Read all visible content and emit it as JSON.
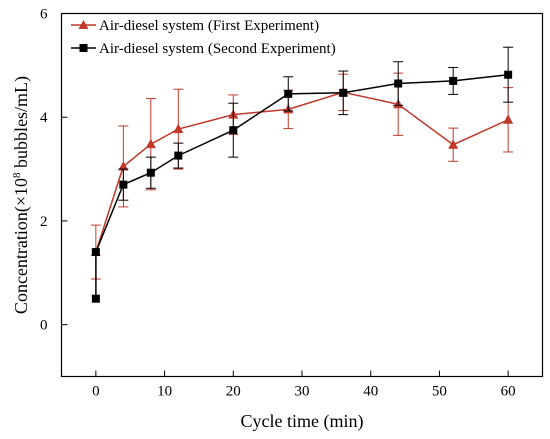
{
  "chart_data": {
    "type": "line",
    "xlabel": "Cycle time (min)",
    "ylabel_prefix": "Concentration(×10",
    "ylabel_exp": "8",
    "ylabel_suffix": " bubbles/mL)",
    "xlim": [
      -5,
      65
    ],
    "ylim": [
      -1,
      6
    ],
    "xticks": [
      0,
      10,
      20,
      30,
      40,
      50,
      60
    ],
    "yticks": [
      0,
      2,
      4,
      6
    ],
    "grid": false,
    "legend_position": "top-left",
    "series": [
      {
        "name": "Air-diesel system (First Experiment)",
        "color": "#c0392b",
        "marker": "triangle",
        "x": [
          0,
          4,
          8,
          12,
          20,
          28,
          36,
          44,
          52,
          60
        ],
        "y": [
          1.4,
          3.05,
          3.48,
          3.77,
          4.05,
          4.15,
          4.48,
          4.25,
          3.47,
          3.95
        ],
        "err": [
          0.52,
          0.78,
          0.88,
          0.77,
          0.38,
          0.37,
          0.35,
          0.6,
          0.32,
          0.62
        ]
      },
      {
        "name": "Air-diesel system (Second Experiment)",
        "color": "#000000",
        "marker": "square",
        "x": [
          0,
          0,
          4,
          8,
          12,
          20,
          28,
          36,
          44,
          52,
          60
        ],
        "y": [
          0.5,
          1.4,
          2.7,
          2.93,
          3.26,
          3.75,
          4.45,
          4.47,
          4.65,
          4.7,
          4.82
        ],
        "err": [
          0,
          0,
          0.3,
          0.3,
          0.24,
          0.52,
          0.33,
          0.42,
          0.42,
          0.26,
          0.53
        ]
      }
    ]
  }
}
